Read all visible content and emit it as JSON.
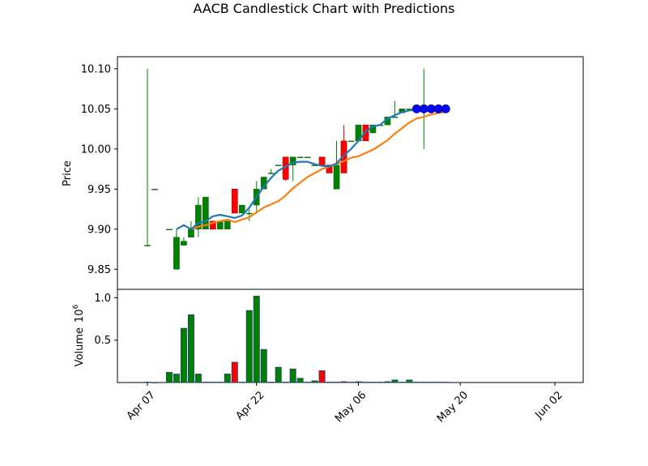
{
  "chart_data": {
    "type": "candlestick",
    "title": "AACB Candlestick Chart with Predictions",
    "price_panel": {
      "ylabel": "Price",
      "ylim": [
        9.825,
        10.115
      ],
      "yticks": [
        "9.85",
        "9.90",
        "9.95",
        "10.00",
        "10.05",
        "10.10"
      ],
      "grid": false
    },
    "volume_panel": {
      "ylabel": "Volume",
      "exponent_label": "10",
      "exponent": "6",
      "ylim": [
        0,
        1.1
      ],
      "yticks": [
        "0.5",
        "1.0"
      ]
    },
    "x_axis": {
      "tick_labels": [
        "Apr 07",
        "Apr 22",
        "May 06",
        "May 20",
        "Jun 02"
      ],
      "tick_days": [
        0,
        15,
        29,
        43,
        56
      ]
    },
    "colors": {
      "up": "#008000",
      "down": "#ff0000",
      "ma_fast": "#1f77b4",
      "ma_slow": "#ff7f0e",
      "prediction": "#0000ff"
    },
    "candles": [
      {
        "day": 0,
        "open": 9.88,
        "high": 10.1,
        "low": 9.88,
        "close": 9.88,
        "volume": 0.005
      },
      {
        "day": 1,
        "open": 9.95,
        "high": 9.95,
        "low": 9.95,
        "close": 9.95,
        "volume": 0.0
      },
      {
        "day": 3,
        "open": 9.9,
        "high": 9.9,
        "low": 9.9,
        "close": 9.9,
        "volume": 0.12
      },
      {
        "day": 4,
        "open": 9.85,
        "high": 9.9,
        "low": 9.85,
        "close": 9.89,
        "volume": 0.1
      },
      {
        "day": 5,
        "open": 9.88,
        "high": 9.89,
        "low": 9.88,
        "close": 9.885,
        "volume": 0.64
      },
      {
        "day": 6,
        "open": 9.89,
        "high": 9.91,
        "low": 9.89,
        "close": 9.9,
        "volume": 0.8
      },
      {
        "day": 7,
        "open": 9.9,
        "high": 9.94,
        "low": 9.89,
        "close": 9.93,
        "volume": 0.1
      },
      {
        "day": 8,
        "open": 9.9,
        "high": 9.94,
        "low": 9.9,
        "close": 9.94,
        "volume": 0.005
      },
      {
        "day": 9,
        "open": 9.91,
        "high": 9.91,
        "low": 9.9,
        "close": 9.9,
        "volume": 0.005
      },
      {
        "day": 10,
        "open": 9.9,
        "high": 9.91,
        "low": 9.9,
        "close": 9.91,
        "volume": 0.005
      },
      {
        "day": 11,
        "open": 9.9,
        "high": 9.91,
        "low": 9.9,
        "close": 9.91,
        "volume": 0.1
      },
      {
        "day": 12,
        "open": 9.95,
        "high": 9.95,
        "low": 9.92,
        "close": 9.92,
        "volume": 0.24
      },
      {
        "day": 13,
        "open": 9.92,
        "high": 9.93,
        "low": 9.92,
        "close": 9.93,
        "volume": 0.005
      },
      {
        "day": 14,
        "open": 9.92,
        "high": 9.925,
        "low": 9.91,
        "close": 9.92,
        "volume": 0.85
      },
      {
        "day": 15,
        "open": 9.93,
        "high": 9.96,
        "low": 9.92,
        "close": 9.95,
        "volume": 1.02
      },
      {
        "day": 16,
        "open": 9.95,
        "high": 9.965,
        "low": 9.95,
        "close": 9.965,
        "volume": 0.39
      },
      {
        "day": 17,
        "open": 9.97,
        "high": 9.975,
        "low": 9.97,
        "close": 9.97,
        "volume": 0.005
      },
      {
        "day": 18,
        "open": 9.98,
        "high": 9.98,
        "low": 9.98,
        "close": 9.98,
        "volume": 0.18
      },
      {
        "day": 19,
        "open": 9.99,
        "high": 9.99,
        "low": 9.96,
        "close": 9.962,
        "volume": 0.005
      },
      {
        "day": 20,
        "open": 9.98,
        "high": 9.99,
        "low": 9.96,
        "close": 9.99,
        "volume": 0.16
      },
      {
        "day": 21,
        "open": 9.99,
        "high": 9.99,
        "low": 9.99,
        "close": 9.99,
        "volume": 0.05
      },
      {
        "day": 22,
        "open": 9.99,
        "high": 9.99,
        "low": 9.99,
        "close": 9.99,
        "volume": 0.005
      },
      {
        "day": 23,
        "open": 9.98,
        "high": 9.98,
        "low": 9.98,
        "close": 9.98,
        "volume": 0.02
      },
      {
        "day": 24,
        "open": 9.99,
        "high": 9.99,
        "low": 9.98,
        "close": 9.98,
        "volume": 0.14
      },
      {
        "day": 25,
        "open": 9.98,
        "high": 9.98,
        "low": 9.97,
        "close": 9.97,
        "volume": 0.005
      },
      {
        "day": 26,
        "open": 9.95,
        "high": 10.01,
        "low": 9.95,
        "close": 9.98,
        "volume": 0.005
      },
      {
        "day": 27,
        "open": 10.01,
        "high": 10.03,
        "low": 9.97,
        "close": 9.97,
        "volume": 0.01
      },
      {
        "day": 28,
        "open": 10.01,
        "high": 10.01,
        "low": 10.01,
        "close": 10.01,
        "volume": 0.005
      },
      {
        "day": 29,
        "open": 10.01,
        "high": 10.03,
        "low": 10.01,
        "close": 10.03,
        "volume": 0.01
      },
      {
        "day": 30,
        "open": 10.03,
        "high": 10.03,
        "low": 10.01,
        "close": 10.01,
        "volume": 0.005
      },
      {
        "day": 31,
        "open": 10.02,
        "high": 10.03,
        "low": 10.02,
        "close": 10.03,
        "volume": 0.005
      },
      {
        "day": 32,
        "open": 10.03,
        "high": 10.03,
        "low": 10.03,
        "close": 10.03,
        "volume": 0.005
      },
      {
        "day": 33,
        "open": 10.03,
        "high": 10.04,
        "low": 10.03,
        "close": 10.04,
        "volume": 0.01
      },
      {
        "day": 34,
        "open": 10.04,
        "high": 10.06,
        "low": 10.04,
        "close": 10.04,
        "volume": 0.03
      },
      {
        "day": 35,
        "open": 10.045,
        "high": 10.05,
        "low": 10.045,
        "close": 10.05,
        "volume": 0.005
      },
      {
        "day": 36,
        "open": 10.05,
        "high": 10.05,
        "low": 10.05,
        "close": 10.05,
        "volume": 0.03
      },
      {
        "day": 37,
        "open": 10.05,
        "high": 10.05,
        "low": 10.05,
        "close": 10.05,
        "volume": 0.005
      },
      {
        "day": 38,
        "open": 10.05,
        "high": 10.1,
        "low": 10.0,
        "close": 10.05,
        "volume": 0.005
      },
      {
        "day": 39,
        "open": 10.05,
        "high": 10.05,
        "low": 10.05,
        "close": 10.05,
        "volume": 0.005
      },
      {
        "day": 40,
        "open": 10.05,
        "high": 10.05,
        "low": 10.05,
        "close": 10.05,
        "volume": 0.005
      },
      {
        "day": 41,
        "open": 10.05,
        "high": 10.05,
        "low": 10.05,
        "close": 10.05,
        "volume": 0.005
      }
    ],
    "ma_fast": {
      "days": [
        4,
        5,
        6,
        7,
        8,
        9,
        10,
        11,
        12,
        13,
        14,
        15,
        16,
        17,
        18,
        19,
        20,
        21,
        22,
        23,
        24,
        25,
        26,
        27,
        28,
        29,
        30,
        31,
        32,
        33,
        34,
        35,
        36,
        37,
        38,
        39,
        40,
        41
      ],
      "values": [
        9.9,
        9.905,
        9.9,
        9.908,
        9.91,
        9.916,
        9.918,
        9.916,
        9.914,
        9.917,
        9.927,
        9.94,
        9.953,
        9.964,
        9.973,
        9.978,
        9.983,
        9.984,
        9.984,
        9.981,
        9.979,
        9.978,
        9.982,
        9.992,
        10.0,
        10.01,
        10.022,
        10.028,
        10.03,
        10.038,
        10.042,
        10.046,
        10.048,
        10.049,
        10.049,
        10.049,
        10.048,
        10.047
      ]
    },
    "ma_slow": {
      "days": [
        6,
        7,
        8,
        9,
        10,
        11,
        12,
        13,
        14,
        15,
        16,
        17,
        18,
        19,
        20,
        21,
        22,
        23,
        24,
        25,
        26,
        27,
        28,
        29,
        30,
        31,
        32,
        33,
        34,
        35,
        36,
        37,
        38,
        39,
        40,
        41
      ],
      "values": [
        9.9,
        9.903,
        9.905,
        9.908,
        9.91,
        9.912,
        9.909,
        9.912,
        9.915,
        9.921,
        9.927,
        9.931,
        9.935,
        9.942,
        9.951,
        9.958,
        9.965,
        9.97,
        9.975,
        9.978,
        9.981,
        9.985,
        9.989,
        9.991,
        9.995,
        9.999,
        10.005,
        10.011,
        10.019,
        10.026,
        10.033,
        10.038,
        10.04,
        10.043,
        10.045,
        10.046
      ]
    },
    "predictions": {
      "days": [
        37,
        38,
        39,
        40,
        41
      ],
      "values": [
        10.05,
        10.05,
        10.05,
        10.05,
        10.05
      ]
    }
  }
}
